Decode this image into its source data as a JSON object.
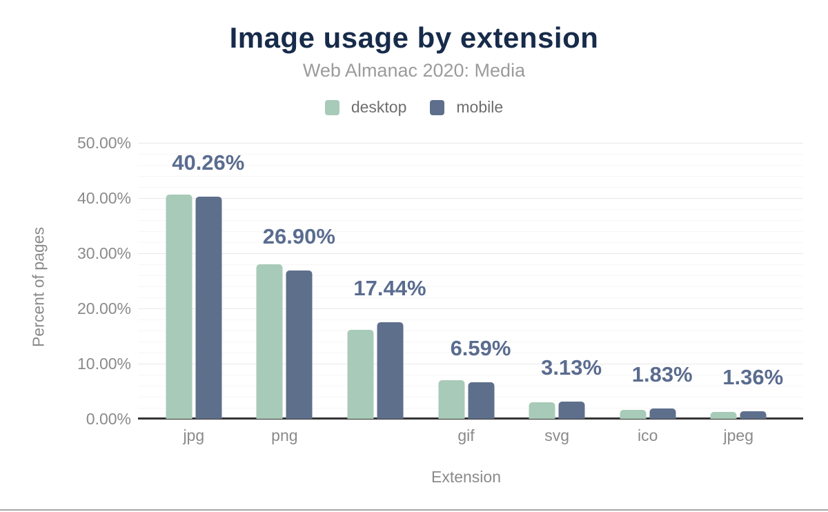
{
  "chart_data": {
    "type": "bar",
    "title": "Image usage by extension",
    "subtitle": "Web Almanac 2020: Media",
    "xlabel": "Extension",
    "ylabel": "Percent of pages",
    "categories": [
      "jpg",
      "png",
      "",
      "gif",
      "svg",
      "ico",
      "jpeg"
    ],
    "series": [
      {
        "name": "desktop",
        "color": "#a8cab8",
        "values": [
          40.6,
          28.0,
          16.1,
          7.0,
          3.0,
          1.6,
          1.3
        ]
      },
      {
        "name": "mobile",
        "color": "#5e6f8c",
        "values": [
          40.26,
          26.9,
          17.44,
          6.59,
          3.13,
          1.83,
          1.36
        ]
      }
    ],
    "data_labels": [
      "40.26%",
      "26.90%",
      "17.44%",
      "6.59%",
      "3.13%",
      "1.83%",
      "1.36%"
    ],
    "yticks": [
      "0.00%",
      "10.00%",
      "20.00%",
      "30.00%",
      "40.00%",
      "50.00%"
    ],
    "ylim": [
      0,
      50
    ],
    "grid": true,
    "legend_position": "top",
    "colors": {
      "title": "#172b4a",
      "subtitle": "#9b9b9b",
      "axis_text": "#8a8a8a",
      "data_label": "#5a6c8f",
      "axis_line": "#333333",
      "grid_major": "#e8e8e8",
      "grid_minor": "#f6f6f6",
      "footer_line": "#a6a6a6"
    }
  }
}
